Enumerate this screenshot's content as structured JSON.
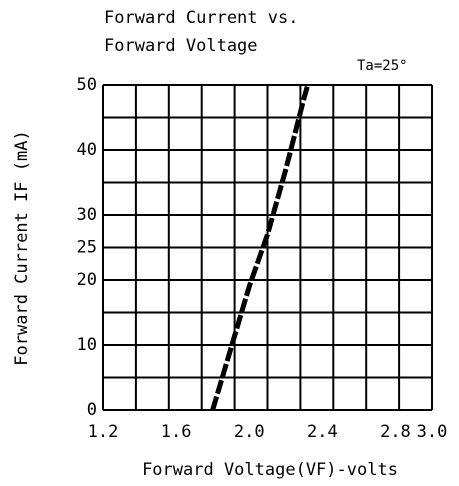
{
  "chart_data": {
    "type": "line",
    "title": [
      "Forward Current vs.",
      "Forward Voltage"
    ],
    "annotation": "Ta=25°",
    "x_label": "Forward Voltage(VF)-volts",
    "y_label": "Forward Current IF (mA)",
    "x": [
      1.8,
      2.0,
      2.1,
      2.2,
      2.3,
      2.32
    ],
    "series": [
      {
        "color": "#000000",
        "values": [
          0,
          19,
          27,
          37,
          48,
          50
        ]
      }
    ],
    "xlim": [
      1.2,
      3.0
    ],
    "xticks": [
      {
        "value": 1.2,
        "label": "1.2"
      },
      1.6,
      {
        "value": 2.0,
        "label": "2.0"
      },
      2.4,
      2.8,
      {
        "value": 3.0,
        "label": "3.0"
      }
    ],
    "xgrid": [
      1.2,
      1.38,
      1.56,
      1.74,
      1.92,
      2.1,
      2.28,
      2.46,
      2.64,
      2.82,
      3.0
    ],
    "ylim": [
      0,
      50
    ],
    "yticks": [
      0,
      10,
      20,
      25,
      30,
      40,
      50
    ],
    "ygrid": [
      0,
      5,
      10,
      15,
      20,
      25,
      30,
      35,
      40,
      45,
      50
    ],
    "grid": true
  }
}
